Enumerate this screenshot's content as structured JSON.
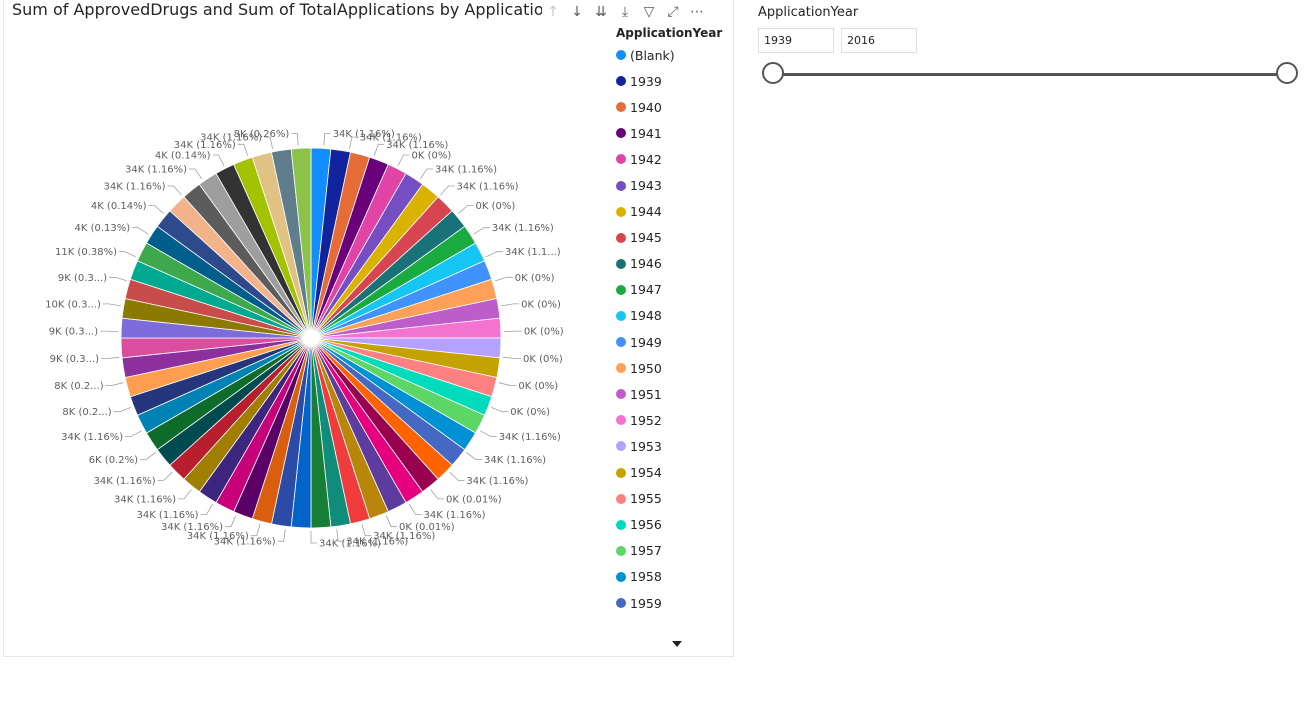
{
  "chart": {
    "title": "Sum of ApprovedDrugs and Sum of TotalApplications by ApplicationYear",
    "toolbar": {
      "up_icon": "arrow-up-icon",
      "down_icon": "arrow-down-icon",
      "double_down_icon": "double-arrow-down-icon",
      "expand_icon": "expand-hierarchy-icon",
      "filter_icon": "filter-icon",
      "focus_icon": "focus-mode-icon",
      "more_icon": "more-options-icon"
    },
    "legend_title": "ApplicationYear",
    "legend_items": [
      {
        "label": "(Blank)",
        "color": "#118DFF"
      },
      {
        "label": "1939",
        "color": "#12239E"
      },
      {
        "label": "1940",
        "color": "#E66C37"
      },
      {
        "label": "1941",
        "color": "#6B007B"
      },
      {
        "label": "1942",
        "color": "#E044A7"
      },
      {
        "label": "1943",
        "color": "#744EC2"
      },
      {
        "label": "1944",
        "color": "#D9B300"
      },
      {
        "label": "1945",
        "color": "#D64550"
      },
      {
        "label": "1946",
        "color": "#197278"
      },
      {
        "label": "1947",
        "color": "#1AAB40"
      },
      {
        "label": "1948",
        "color": "#15C6F4"
      },
      {
        "label": "1949",
        "color": "#4092FF"
      },
      {
        "label": "1950",
        "color": "#FFA058"
      },
      {
        "label": "1951",
        "color": "#BE5DC9"
      },
      {
        "label": "1952",
        "color": "#F472D0"
      },
      {
        "label": "1953",
        "color": "#B5A1FF"
      },
      {
        "label": "1954",
        "color": "#C4A200"
      },
      {
        "label": "1955",
        "color": "#FF8080"
      },
      {
        "label": "1956",
        "color": "#00DBBC"
      },
      {
        "label": "1957",
        "color": "#5BD667"
      },
      {
        "label": "1958",
        "color": "#0091D5"
      },
      {
        "label": "1959",
        "color": "#4668C5"
      }
    ]
  },
  "chart_data": {
    "type": "pie",
    "title": "Sum of ApprovedDrugs and Sum of TotalApplications by ApplicationYear",
    "legend_title": "ApplicationYear",
    "legend_position": "right",
    "unit_note": "",
    "slice_colors": [
      "#118DFF",
      "#12239E",
      "#E66C37",
      "#6B007B",
      "#E044A7",
      "#744EC2",
      "#D9B300",
      "#D64550",
      "#197278",
      "#1AAB40",
      "#15C6F4",
      "#4092FF",
      "#FFA058",
      "#BE5DC9",
      "#F472D0",
      "#B5A1FF",
      "#C4A200",
      "#FF8080",
      "#00DBBC",
      "#5BD667",
      "#0091D5",
      "#4668C5",
      "#FF6300",
      "#99004E",
      "#E6007E",
      "#5E3B9E",
      "#B8860B",
      "#F03C3C",
      "#0F8C7A",
      "#167E35",
      "#0064C8",
      "#2C4BA8",
      "#D95F0E",
      "#5A0066",
      "#C8007A",
      "#3D2680",
      "#A07E00",
      "#B81E2E",
      "#004B4F",
      "#0E6B2A",
      "#0082B4",
      "#26367C",
      "#FF9E4F",
      "#8E2F9E",
      "#D94F9E",
      "#7D6BD9",
      "#8C7A00",
      "#C94C4C",
      "#00A98F",
      "#3EA84D",
      "#005E8C",
      "#2F4A8C",
      "#F2B38A",
      "#5C5C5C",
      "#9E9E9E",
      "#333333",
      "#A3C200",
      "#E0C285",
      "#607D8B",
      "#8BC34A"
    ],
    "slice_labels": [
      "34K (1.16%)",
      "34K (1.16%)",
      "34K (1.16%)",
      "0K (0%)",
      "34K (1.16%)",
      "34K (1.16%)",
      "0K (0%)",
      "34K (1.16%)",
      "34K (1.1...)",
      "0K (0%)",
      "0K (0%)",
      "0K (0%)",
      "0K (0%)",
      "0K (0%)",
      "0K (0%)",
      "34K (1.16%)",
      "34K (1.16%)",
      "34K (1.16%)",
      "0K (0.01%)",
      "34K (1.16%)",
      "0K (0.01%)",
      "34K (1.16%)",
      "34K (1.16%)",
      "34K (1.16%)",
      "34K (1.16%)",
      "34K (1.16%)",
      "34K (1.16%)",
      "34K (1.16%)",
      "34K (1.16%)",
      "34K (1.16%)",
      "6K (0.2%)",
      "34K (1.16%)",
      "8K (0.2...)",
      "8K (0.2...)",
      "9K (0.3...)",
      "9K (0.3...)",
      "10K (0.3...)",
      "9K (0.3...)",
      "11K (0.38%)",
      "4K (0.13%)",
      "4K (0.14%)",
      "34K (1.16%)",
      "34K (1.16%)",
      "4K (0.14%)",
      "34K (1.16%)",
      "34K (1.16%)",
      "8K (0.26%)"
    ]
  },
  "slicer": {
    "title": "ApplicationYear",
    "start_value": "1939",
    "end_value": "2016",
    "range_min": 1939,
    "range_max": 2016,
    "selected_start": 1939,
    "selected_end": 2016
  }
}
